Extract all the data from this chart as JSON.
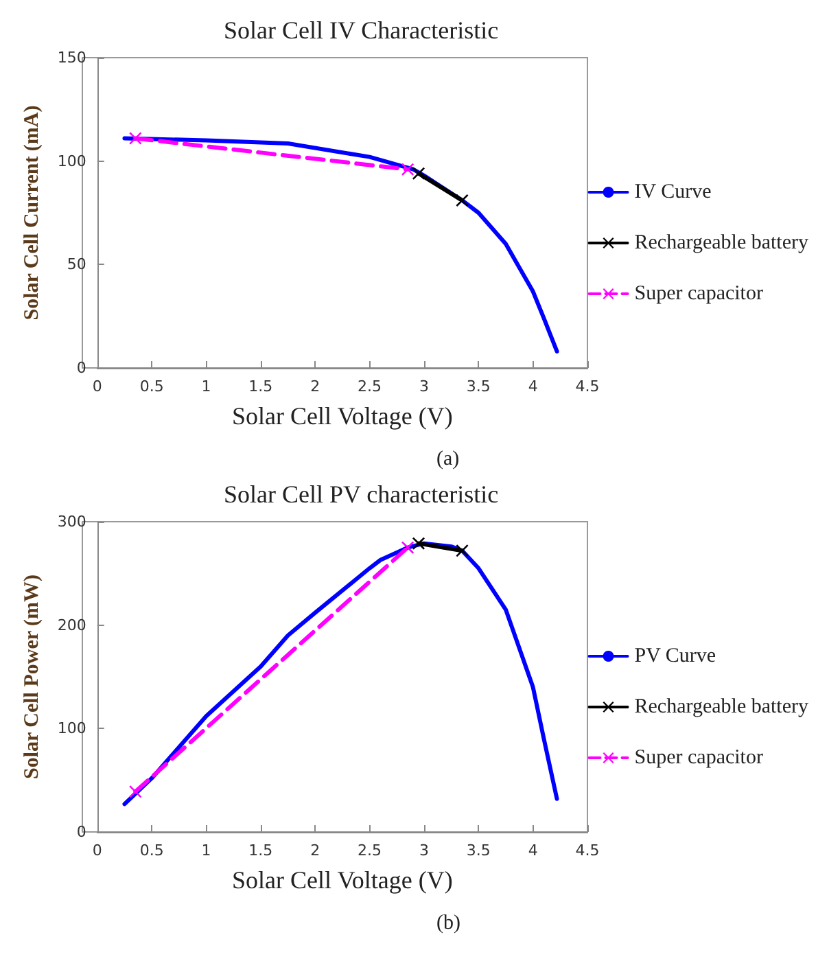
{
  "chart_data": [
    {
      "type": "line",
      "title": "Solar Cell IV Characteristic",
      "xlabel": "Solar Cell Voltage (V)",
      "ylabel": "Solar Cell Current (mA)",
      "annotations": [
        "(a)"
      ],
      "xlim": [
        0,
        4.5
      ],
      "xticks": [
        0,
        0.5,
        1,
        1.5,
        2,
        2.5,
        3,
        3.5,
        4,
        4.5
      ],
      "ylim": [
        0,
        150
      ],
      "yticks": [
        0,
        50,
        100,
        150
      ],
      "grid": false,
      "legend": "right",
      "series": [
        {
          "name": "IV Curve",
          "color": "#0000ff",
          "marker": "none",
          "line_style": "solid",
          "x": [
            0.25,
            1.0,
            1.75,
            2.5,
            2.9,
            3.0,
            3.35,
            3.5,
            3.75,
            4.0,
            4.1,
            4.22
          ],
          "values": [
            111,
            110,
            108.5,
            102,
            96,
            93,
            81,
            75,
            60,
            37,
            24,
            8
          ]
        },
        {
          "name": "Rechargeable battery",
          "color": "#000000",
          "marker": "cross",
          "line_style": "solid",
          "x": [
            2.95,
            3.35
          ],
          "values": [
            94,
            81
          ]
        },
        {
          "name": "Super capacitor",
          "color": "#ff00ff",
          "marker": "cross",
          "line_style": "dashed",
          "x": [
            0.35,
            2.85
          ],
          "values": [
            111,
            96
          ]
        }
      ]
    },
    {
      "type": "line",
      "title": "Solar Cell PV characteristic",
      "xlabel": "Solar Cell Voltage (V)",
      "ylabel": "Solar Cell Power (mW)",
      "annotations": [
        "(b)"
      ],
      "xlim": [
        0,
        4.5
      ],
      "xticks": [
        0,
        0.5,
        1,
        1.5,
        2,
        2.5,
        3,
        3.5,
        4,
        4.5
      ],
      "ylim": [
        0,
        300
      ],
      "yticks": [
        0,
        100,
        200,
        300
      ],
      "grid": false,
      "legend": "right",
      "series": [
        {
          "name": "PV Curve",
          "color": "#0000ff",
          "marker": "none",
          "line_style": "solid",
          "x": [
            0.25,
            0.5,
            1.0,
            1.5,
            1.75,
            2.0,
            2.5,
            2.6,
            2.85,
            3.0,
            3.25,
            3.35,
            3.5,
            3.75,
            4.0,
            4.1,
            4.22
          ],
          "values": [
            27,
            52,
            112,
            160,
            190,
            212,
            255,
            263,
            275,
            279,
            276,
            272,
            255,
            215,
            140,
            90,
            32
          ]
        },
        {
          "name": "Rechargeable battery",
          "color": "#000000",
          "marker": "cross",
          "line_style": "solid",
          "x": [
            2.95,
            3.35
          ],
          "values": [
            279,
            272
          ]
        },
        {
          "name": "Super capacitor",
          "color": "#ff00ff",
          "marker": "cross",
          "line_style": "dashed",
          "x": [
            0.35,
            2.85
          ],
          "values": [
            39,
            275
          ]
        }
      ]
    }
  ]
}
